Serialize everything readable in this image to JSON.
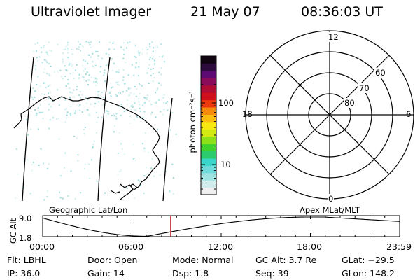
{
  "header": {
    "title": "Ultraviolet Imager",
    "date": "21 May 07",
    "time": "08:36:03 UT"
  },
  "colorbar": {
    "unit_label": "photon cm⁻²s⁻¹",
    "tick_labels": [
      "100",
      "10"
    ],
    "colors": [
      "#f0f0f0",
      "#d0ecec",
      "#9fe3e3",
      "#6fdcdc",
      "#39d6c9",
      "#2ccc6e",
      "#3fd22a",
      "#8ee018",
      "#d2ea12",
      "#f8e812",
      "#fbbd10",
      "#f58a0c",
      "#ec3a0a",
      "#d0101e",
      "#b00c34",
      "#8a0b5a",
      "#5c0a72",
      "#2c0a3c",
      "#120512"
    ]
  },
  "polar_plot": {
    "mlt_labels": [
      "12",
      "18",
      "6",
      "0"
    ],
    "lat_labels": [
      "60",
      "70",
      "80"
    ]
  },
  "timeline": {
    "left_title": "Geographic Lat/Lon",
    "right_title": "Apex MLat/MLT",
    "y_label": "GC Alt",
    "y_ticks": [
      "9.0",
      "1.8"
    ],
    "x_ticks": [
      "00:00",
      "06:00",
      "12:00",
      "18:00",
      "23:59"
    ],
    "marker_time": "08:36",
    "marker_color": "#c83232"
  },
  "status": {
    "filter": "Flt: LBHL",
    "door": "Door: Open",
    "mode": "Mode: Normal",
    "gc_alt": "GC Alt: 3.7 Re",
    "glat": "GLat: −29.5",
    "ip": "IP: 36.0",
    "gain": "Gain: 14",
    "dsp": "Dsp:    1.8",
    "seq": "Seq: 39",
    "glon": "GLon: 148.2"
  }
}
